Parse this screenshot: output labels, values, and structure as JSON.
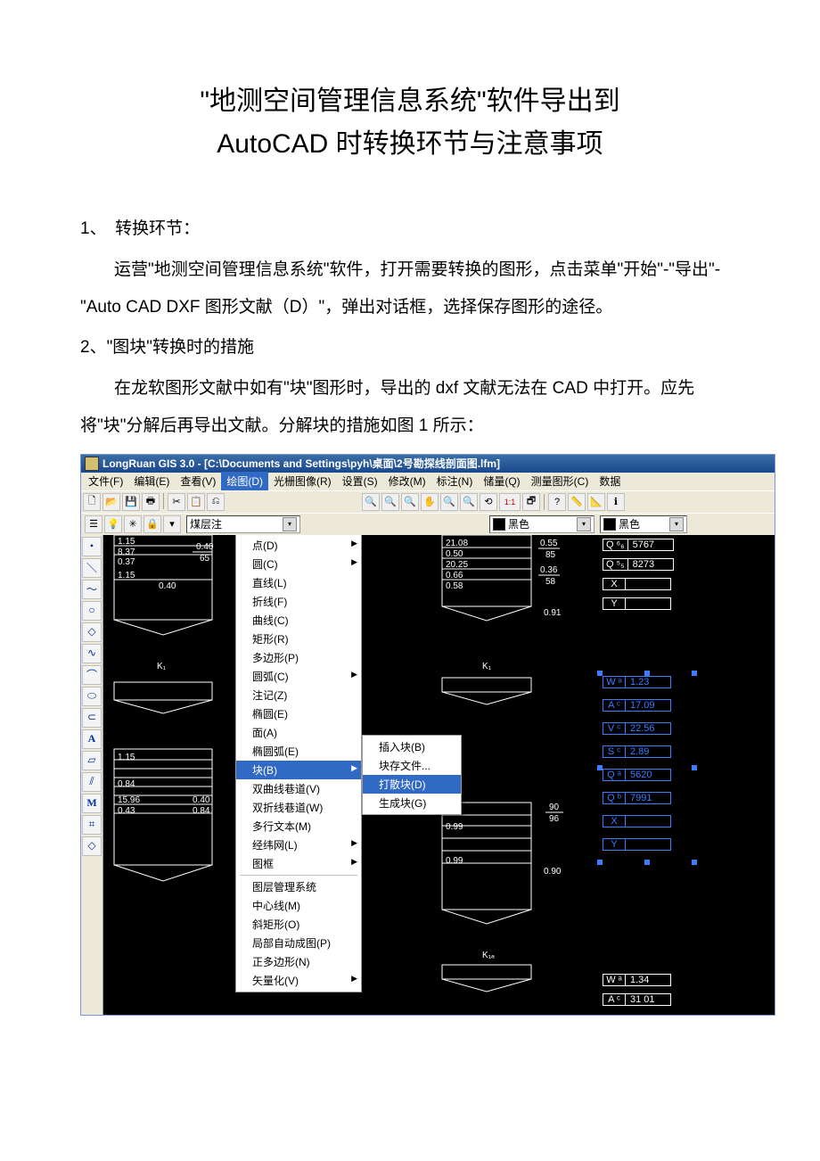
{
  "doc": {
    "title_line1": "\"地测空间管理信息系统\"软件导出到",
    "title_line2": "AutoCAD 时转换环节与注意事项",
    "section1_label": "1、　转换环节：",
    "section1_para": "运营\"地测空间管理信息系统\"软件，打开需要转换的图形，点击菜单\"开始\"-\"导出\"-\"Auto CAD DXF 图形文献（D）\"，弹出对话框，选择保存图形的途径。",
    "section2_label": "2、\"图块\"转换时的措施",
    "section2_para": "在龙软图形文献中如有\"块\"图形时，导出的 dxf 文献无法在 CAD 中打开。应先将\"块\"分解后再导出文献。分解块的措施如图 1 所示："
  },
  "screenshot": {
    "title": "LongRuan GIS 3.0 - [C:\\Documents and Settings\\pyh\\桌面\\2号勘探线剖面图.lfm]",
    "menubar": [
      {
        "label": "文件(F)",
        "key": "F"
      },
      {
        "label": "编辑(E)",
        "key": "E"
      },
      {
        "label": "查看(V)",
        "key": "V"
      },
      {
        "label": "绘图(D)",
        "key": "D",
        "active": true
      },
      {
        "label": "光栅图像(R)",
        "key": "R"
      },
      {
        "label": "设置(S)",
        "key": "S"
      },
      {
        "label": "修改(M)",
        "key": "M"
      },
      {
        "label": "标注(N)",
        "key": "N"
      },
      {
        "label": "储量(Q)",
        "key": "Q"
      },
      {
        "label": "测量图形(C)",
        "key": "C"
      },
      {
        "label": "数据",
        "key": ""
      }
    ],
    "toolbar1_glyphs": [
      "🗋",
      "📂",
      "💾",
      "🖶",
      "|",
      "✂",
      "📋",
      "⎌"
    ],
    "toolbar1_right_glyphs": [
      "🔍",
      "🔍",
      "🔍",
      "✋",
      "🔍",
      "🔍",
      "⟲",
      "1:1",
      "🗗",
      "|",
      "?",
      "📏",
      "📐",
      "ℹ"
    ],
    "toolbar2_left_glyphs": [
      "☰",
      "💡",
      "✳",
      "🔒",
      "▾"
    ],
    "layer_combo_label": "煤层注",
    "color_combo_label": "黑色",
    "color_combo2_label": "黑色",
    "left_tool_glyphs": [
      "•",
      "＼",
      "～",
      "○",
      "◇",
      "∿",
      "⌒",
      "⬭",
      "⊂",
      "A",
      "▱",
      "⫽",
      "M",
      "⌗",
      "◇"
    ],
    "draw_menu": [
      {
        "label": "点(D)",
        "arrow": true
      },
      {
        "label": "圆(C)",
        "arrow": true
      },
      {
        "label": "直线(L)"
      },
      {
        "label": "折线(F)"
      },
      {
        "label": "曲线(C)"
      },
      {
        "label": "矩形(R)"
      },
      {
        "label": "多边形(P)"
      },
      {
        "label": "圆弧(C)",
        "arrow": true
      },
      {
        "label": "注记(Z)"
      },
      {
        "label": "椭圆(E)"
      },
      {
        "label": "面(A)"
      },
      {
        "label": "椭圆弧(E)"
      },
      {
        "label": "块(B)",
        "arrow": true,
        "highlight": true
      },
      {
        "label": "双曲线巷道(V)"
      },
      {
        "label": "双折线巷道(W)"
      },
      {
        "label": "多行文本(M)"
      },
      {
        "label": "经纬网(L)",
        "arrow": true
      },
      {
        "label": "图框",
        "arrow": true
      },
      {
        "sep": true
      },
      {
        "label": "图层管理系统"
      },
      {
        "label": "中心线(M)"
      },
      {
        "label": "斜矩形(O)"
      },
      {
        "label": "局部自动成图(P)"
      },
      {
        "label": "正多边形(N)"
      },
      {
        "label": "矢量化(V)",
        "arrow": true
      }
    ],
    "block_submenu": [
      {
        "label": "插入块(B)"
      },
      {
        "label": "块存文件..."
      },
      {
        "label": "打散块(D)",
        "highlight": true
      },
      {
        "label": "生成块(G)"
      }
    ],
    "numbers_left_col": [
      "8.37",
      "0.37",
      "1.15",
      "0.40",
      "0.40",
      "65"
    ],
    "center_numbers": [
      "21.08",
      "0.50",
      "20.25",
      "0.66",
      "0.58",
      "0.55",
      "85",
      "0.36",
      "58",
      "0.91"
    ],
    "right_pairs_top": [
      {
        "k": "Q ⁶₆",
        "v": "5767"
      },
      {
        "k": "Q ⁵₅",
        "v": "8273"
      },
      {
        "k": "X",
        "v": ""
      },
      {
        "k": "Y",
        "v": ""
      }
    ],
    "right_pairs_sel": [
      {
        "k": "W ᵃ",
        "v": "1.23"
      },
      {
        "k": "A ᶜ",
        "v": "17.09"
      },
      {
        "k": "V ᶜ",
        "v": "22.56"
      },
      {
        "k": "S ᶜ",
        "v": "2.89"
      },
      {
        "k": "Q ᵃ",
        "v": "5620"
      },
      {
        "k": "Q ᵇ",
        "v": "7991"
      },
      {
        "k": "X",
        "v": ""
      },
      {
        "k": "Y",
        "v": ""
      }
    ],
    "right_pairs_bottom": [
      {
        "k": "W ᵃ",
        "v": "1.34"
      },
      {
        "k": "A ᶜ",
        "v": "31 01"
      }
    ],
    "mid_labels": {
      "k_label": "K₁",
      "k_label2": "K₁",
      "k_label3": "K₁ₐ"
    },
    "bottom_left_nums": [
      "1.15",
      "0.84",
      "15.96",
      "0.43",
      "0.40",
      "0.84"
    ],
    "bottom_right_nums": [
      "0.99",
      "0.99",
      "0.90",
      "90",
      "96"
    ],
    "colors": {
      "titlebar_start": "#3b6ea5",
      "titlebar_end": "#1a478e",
      "menu_bg": "#ece9d8",
      "highlight": "#316ac5",
      "select_blue": "#3d7bff",
      "canvas_bg": "#000000",
      "text_white": "#ffffff"
    }
  }
}
